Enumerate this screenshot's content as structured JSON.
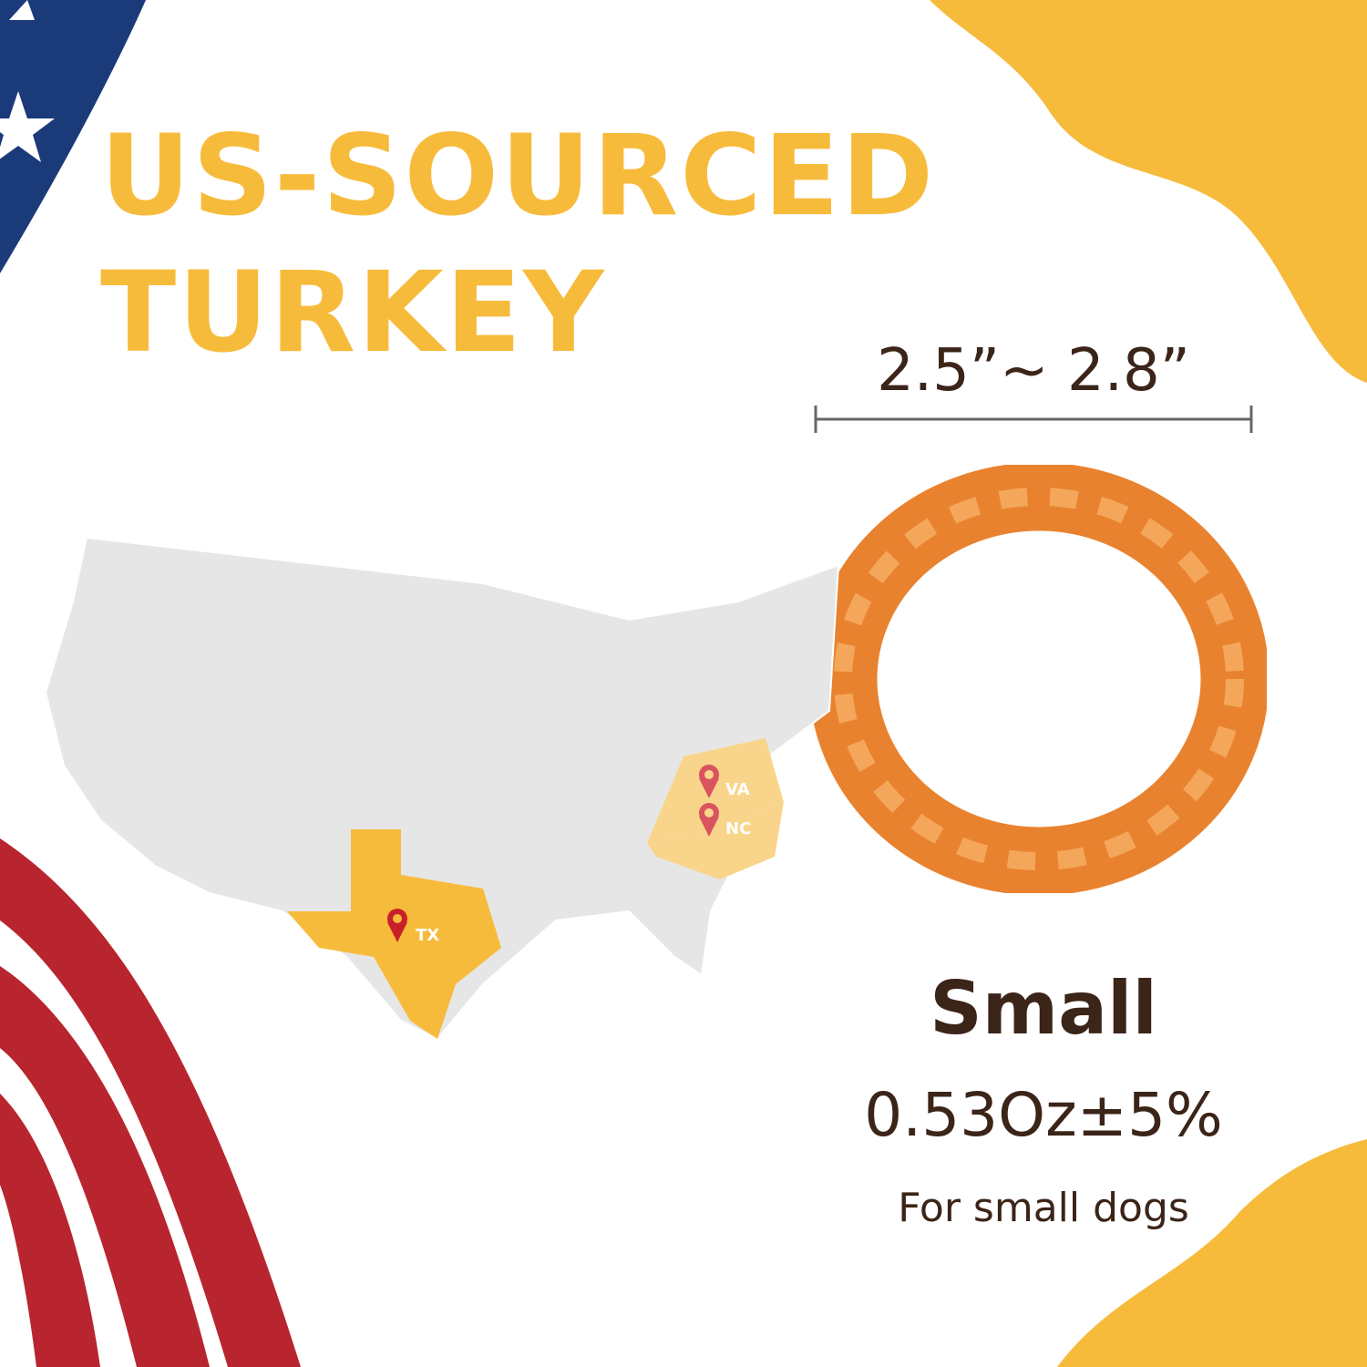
{
  "headline": {
    "line1": "US-SOURCED",
    "line2": "TURKEY"
  },
  "product": {
    "dimension": "2.5”~ 2.8”",
    "size": "Small",
    "weight": "0.53Oz±5%",
    "recommendation": "For small dogs"
  },
  "map": {
    "states": [
      "VA",
      "NC",
      "TX"
    ]
  },
  "colors": {
    "accent": "#f7bb3c",
    "text": "#3b2418",
    "pin": "#d9545f",
    "pin_tx": "#c8202a",
    "map_gray": "#e6e6e6"
  }
}
